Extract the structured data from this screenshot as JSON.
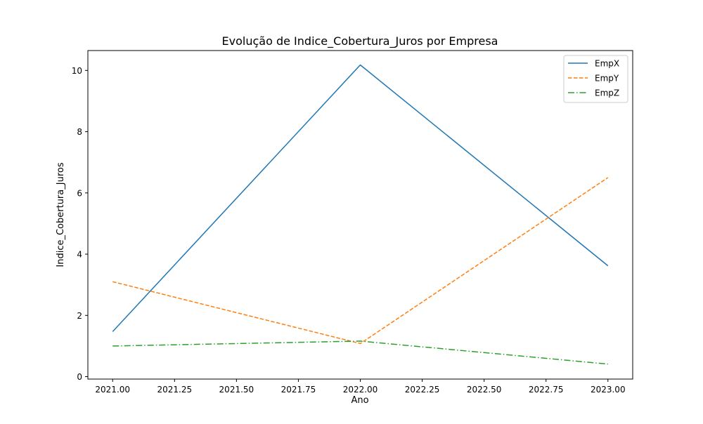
{
  "chart_data": {
    "type": "line",
    "title": "Evolução de Indice_Cobertura_Juros por Empresa",
    "xlabel": "Ano",
    "ylabel": "Indice_Cobertura_Juros",
    "x": [
      2021,
      2022,
      2023
    ],
    "xlim": [
      2020.9,
      2023.1
    ],
    "ylim": [
      -0.08,
      10.65
    ],
    "xticks": [
      2021.0,
      2021.25,
      2021.5,
      2021.75,
      2022.0,
      2022.25,
      2022.5,
      2022.75,
      2023.0
    ],
    "xtick_labels": [
      "2021.00",
      "2021.25",
      "2021.50",
      "2021.75",
      "2022.00",
      "2022.25",
      "2022.50",
      "2022.75",
      "2023.00"
    ],
    "yticks": [
      0,
      2,
      4,
      6,
      8,
      10
    ],
    "ytick_labels": [
      "0",
      "2",
      "4",
      "6",
      "8",
      "10"
    ],
    "grid": false,
    "legend_position": "upper right",
    "series": [
      {
        "name": "EmpX",
        "values": [
          1.47,
          10.18,
          3.62
        ],
        "color": "#1f77b4",
        "linestyle": "solid"
      },
      {
        "name": "EmpY",
        "values": [
          3.1,
          1.08,
          6.5
        ],
        "color": "#ff7f0e",
        "linestyle": "dashed"
      },
      {
        "name": "EmpZ",
        "values": [
          1.0,
          1.16,
          0.41
        ],
        "color": "#2ca02c",
        "linestyle": "dashdot"
      }
    ]
  }
}
